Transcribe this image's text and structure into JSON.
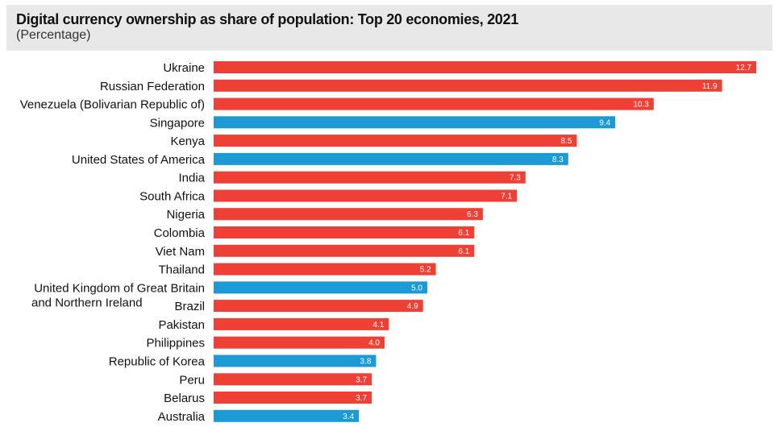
{
  "header": {
    "title": "Digital currency ownership as share of population: Top 20 economies, 2021",
    "subtitle": "(Percentage)"
  },
  "colors": {
    "default": "#ee4035",
    "highlight": "#1b9ad6"
  },
  "chart_data": {
    "type": "bar",
    "orientation": "horizontal",
    "title": "Digital currency ownership as share of population: Top 20 economies, 2021",
    "subtitle": "(Percentage)",
    "categories": [
      "Ukraine",
      "Russian Federation",
      "Venezuela (Bolivarian Republic of)",
      "Singapore",
      "Kenya",
      "United States of America",
      "India",
      "South Africa",
      "Nigeria",
      "Colombia",
      "Viet Nam",
      "Thailand",
      "United Kingdom of Great Britain and Northern Ireland",
      "Brazil",
      "Pakistan",
      "Philippines",
      "Republic of Korea",
      "Peru",
      "Belarus",
      "Australia"
    ],
    "category_lines": [
      [
        "Ukraine"
      ],
      [
        "Russian Federation"
      ],
      [
        "Venezuela (Bolivarian Republic of)"
      ],
      [
        "Singapore"
      ],
      [
        "Kenya"
      ],
      [
        "United States of America"
      ],
      [
        "India"
      ],
      [
        "South Africa"
      ],
      [
        "Nigeria"
      ],
      [
        "Colombia"
      ],
      [
        "Viet Nam"
      ],
      [
        "Thailand"
      ],
      [
        "United Kingdom of Great Britain",
        "and Northern Ireland"
      ],
      [
        "Brazil"
      ],
      [
        "Pakistan"
      ],
      [
        "Philippines"
      ],
      [
        "Republic of Korea"
      ],
      [
        "Peru"
      ],
      [
        "Belarus"
      ],
      [
        "Australia"
      ]
    ],
    "values": [
      12.7,
      11.9,
      10.3,
      9.4,
      8.5,
      8.3,
      7.3,
      7.1,
      6.3,
      6.1,
      6.1,
      5.2,
      5.0,
      4.9,
      4.1,
      4.0,
      3.8,
      3.7,
      3.7,
      3.4
    ],
    "value_labels": [
      "12.7",
      "11.9",
      "10.3",
      "9.4",
      "8.5",
      "8.3",
      "7.3",
      "7.1",
      "6.3",
      "6.1",
      "6.1",
      "5.2",
      "5.0",
      "4.9",
      "4.1",
      "4.0",
      "3.8",
      "3.7",
      "3.7",
      "3.4"
    ],
    "highlighted": [
      false,
      false,
      false,
      true,
      false,
      true,
      false,
      false,
      false,
      false,
      false,
      false,
      true,
      false,
      false,
      false,
      true,
      false,
      false,
      true
    ],
    "xlim": [
      0,
      12.7
    ],
    "xlabel": "",
    "ylabel": "",
    "grid": false,
    "legend": "none"
  }
}
